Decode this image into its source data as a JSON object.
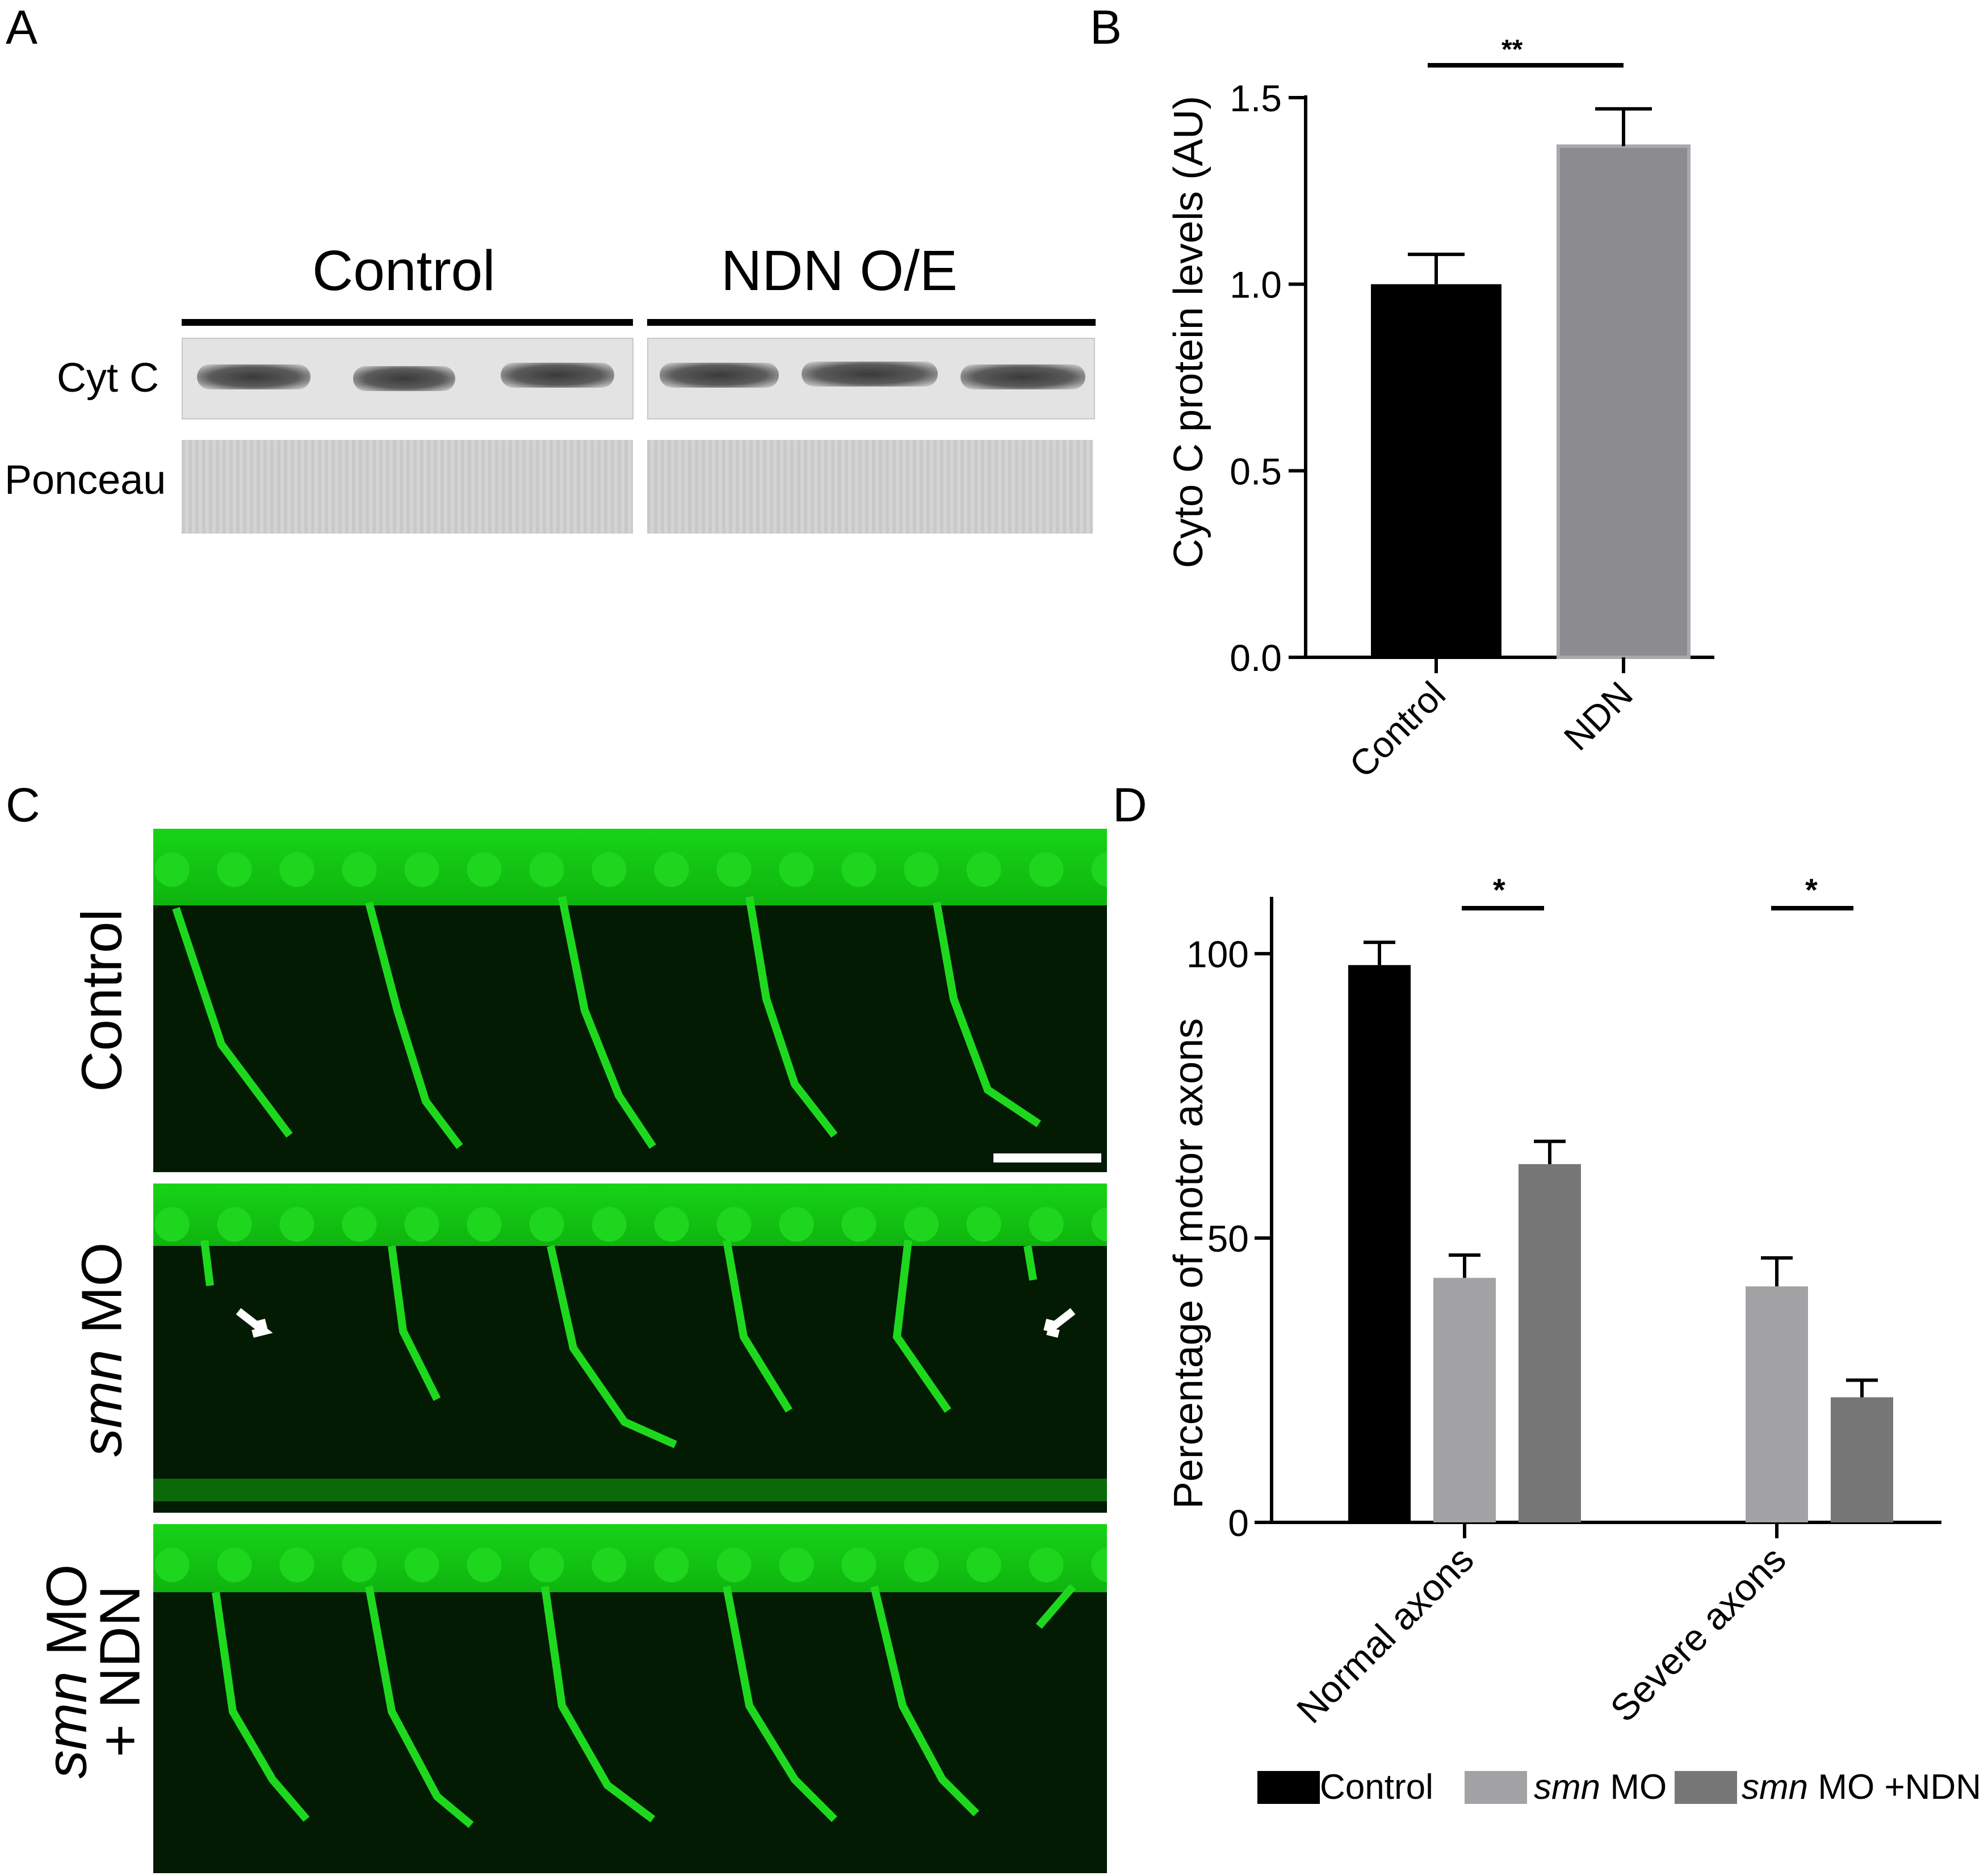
{
  "panels": {
    "A": {
      "letter": "A",
      "header_control": "Control",
      "header_ndn": "NDN O/E",
      "row_cytc": "Cyt C",
      "row_ponceau": "Ponceau"
    },
    "B": {
      "letter": "B",
      "ylabel": "Cyto C protein levels (AU)",
      "yticks": [
        "0.0",
        "0.5",
        "1.0",
        "1.5"
      ],
      "xticks": [
        "Control",
        "NDN"
      ],
      "significance": "**"
    },
    "C": {
      "letter": "C",
      "row1_label": "Control",
      "row2_label_italic": "smn",
      "row2_label_rest": " MO",
      "row3_line1_italic": "smn",
      "row3_line1_rest": " MO",
      "row3_line2": "+ NDN"
    },
    "D": {
      "letter": "D",
      "ylabel": "Percentage of motor axons",
      "yticks": [
        "0",
        "50",
        "100"
      ],
      "xticks": [
        "Normal axons",
        "Severe axons"
      ],
      "significance_1": "*",
      "significance_2": "*",
      "legend": [
        {
          "label_italic": "",
          "label_rest": "Control",
          "color": "#000000"
        },
        {
          "label_italic": "smn",
          "label_rest": " MO",
          "color": "#a3a3a5"
        },
        {
          "label_italic": "smn",
          "label_rest": " MO +NDN",
          "color": "#777777"
        }
      ]
    }
  },
  "chart_data": [
    {
      "panel": "B",
      "type": "bar",
      "categories": [
        "Control",
        "NDN"
      ],
      "values": [
        1.0,
        1.37
      ],
      "errors": [
        0.08,
        0.1
      ],
      "colors": [
        "#000000",
        "#8c8c90"
      ],
      "ylabel": "Cyto C protein levels (AU)",
      "ylim": [
        0,
        1.5
      ],
      "yticks": [
        0,
        0.5,
        1.0,
        1.5
      ],
      "significance": [
        {
          "between": [
            "Control",
            "NDN"
          ],
          "label": "**"
        }
      ]
    },
    {
      "panel": "D",
      "type": "bar",
      "categories": [
        "Normal axons",
        "Severe axons"
      ],
      "series": [
        {
          "name": "Control",
          "values": [
            98,
            0
          ],
          "errors": [
            4,
            0
          ],
          "color": "#000000"
        },
        {
          "name": "smn MO",
          "values": [
            43,
            41.5
          ],
          "errors": [
            4,
            5
          ],
          "color": "#a3a3a5"
        },
        {
          "name": "smn MO +NDN",
          "values": [
            63,
            22
          ],
          "errors": [
            4,
            3
          ],
          "color": "#777777"
        }
      ],
      "ylabel": "Percentage of motor axons",
      "ylim": [
        0,
        110
      ],
      "yticks": [
        0,
        50,
        100
      ],
      "legend_position": "bottom",
      "significance": [
        {
          "category": "Normal axons",
          "between": [
            "smn MO",
            "smn MO +NDN"
          ],
          "label": "*"
        },
        {
          "category": "Severe axons",
          "between": [
            "smn MO",
            "smn MO +NDN"
          ],
          "label": "*"
        }
      ]
    }
  ]
}
